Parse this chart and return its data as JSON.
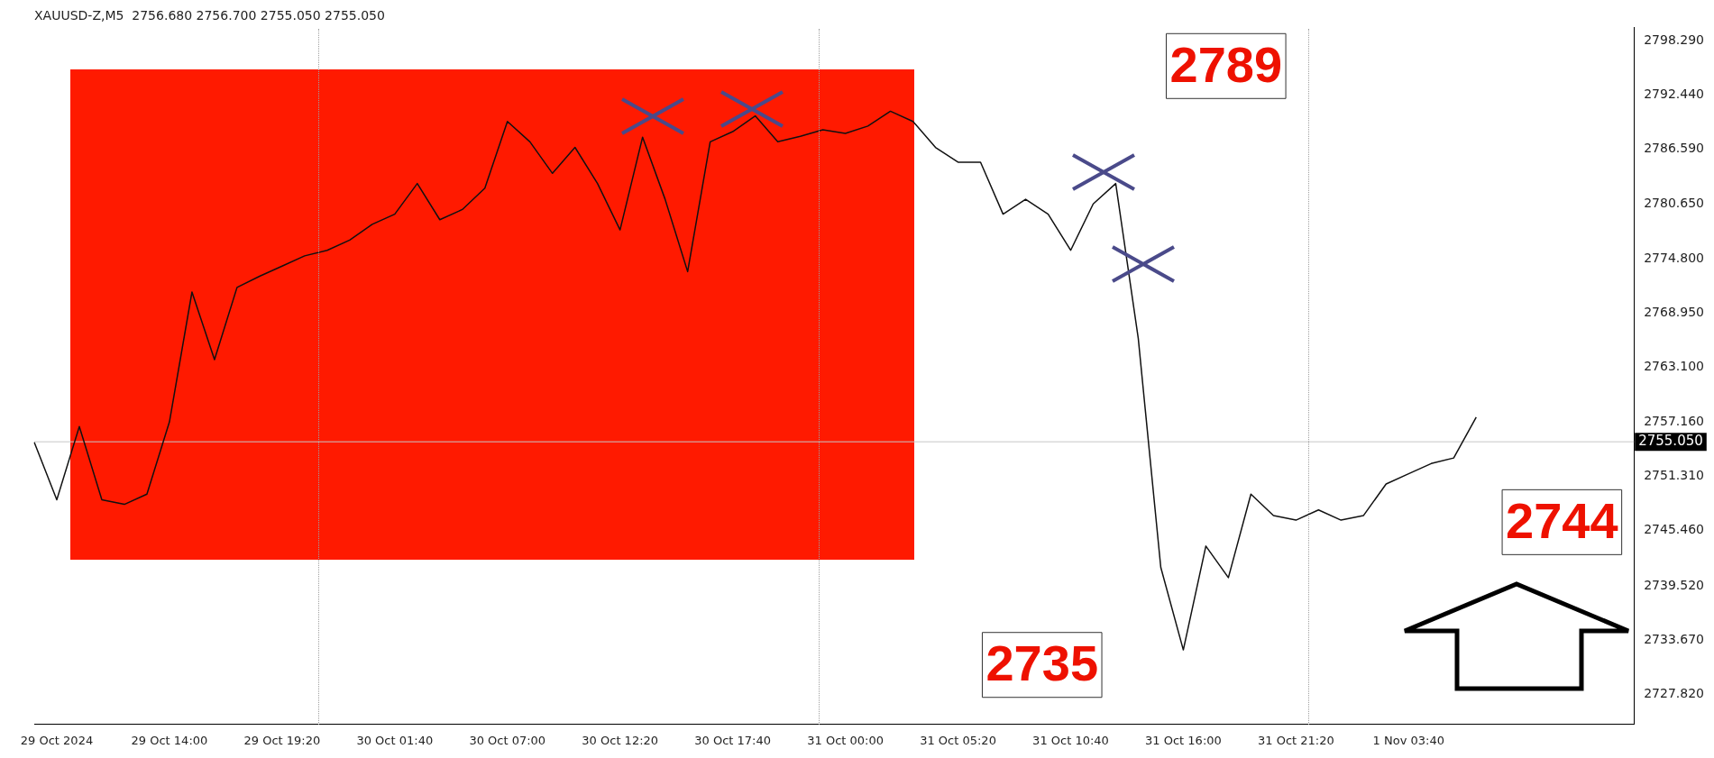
{
  "chart_data": {
    "type": "line",
    "title": "XAUUSD-Z,M5  2756.680 2756.700 2755.050 2755.050",
    "categories": [
      null,
      "29 Oct 2024",
      null,
      null,
      null,
      null,
      "29 Oct 14:00",
      null,
      null,
      null,
      null,
      "29 Oct 19:20",
      null,
      null,
      null,
      null,
      "30 Oct 01:40",
      null,
      null,
      null,
      null,
      "30 Oct 07:00",
      null,
      null,
      null,
      null,
      "30 Oct 12:20",
      null,
      null,
      null,
      null,
      "30 Oct 17:40",
      null,
      null,
      null,
      null,
      "31 Oct 00:00",
      null,
      null,
      null,
      null,
      "31 Oct 05:20",
      null,
      null,
      null,
      null,
      "31 Oct 10:40",
      null,
      null,
      null,
      null,
      "31 Oct 16:00",
      null,
      null,
      null,
      null,
      "31 Oct 21:20",
      null,
      null,
      null,
      null,
      "1 Nov 03:40",
      null,
      null,
      null,
      null,
      null,
      null,
      null,
      null,
      null,
      null
    ],
    "series": [
      {
        "color": "#111111",
        "values": [
          2755.0,
          2748.8,
          2756.7,
          2748.8,
          2748.3,
          2749.4,
          2757.2,
          2771.2,
          2763.9,
          2771.7,
          2772.9,
          2774.0,
          2775.1,
          2775.7,
          2776.8,
          2778.5,
          2779.6,
          2782.9,
          2779.0,
          2780.1,
          2782.4,
          2789.6,
          2787.4,
          2784.0,
          2786.8,
          2782.9,
          2777.9,
          2787.9,
          2781.2,
          2773.4,
          2787.4,
          2788.5,
          2790.2,
          2787.4,
          2788.0,
          2788.7,
          2788.3,
          2789.1,
          2790.7,
          2789.6,
          2786.8,
          2785.2,
          2785.2,
          2779.6,
          2781.2,
          2779.6,
          2775.7,
          2780.7,
          2782.9,
          2766.2,
          2741.5,
          2732.6,
          2743.8,
          2740.4,
          2749.4,
          2747.1,
          2746.6,
          2747.7,
          2746.6,
          2747.1,
          2750.5,
          2751.6,
          2752.7,
          2753.3,
          2757.7,
          null,
          null,
          null,
          null,
          null,
          null,
          null
        ]
      }
    ],
    "ylim": [
      2724.6,
      2799.7
    ],
    "yticks": [
      {
        "value": 2727.82,
        "label": "2727.820"
      },
      {
        "value": 2733.67,
        "label": "2733.670"
      },
      {
        "value": 2739.52,
        "label": "2739.520"
      },
      {
        "value": 2745.46,
        "label": "2745.460"
      },
      {
        "value": 2751.31,
        "label": "2751.310"
      },
      {
        "value": 2757.16,
        "label": "2757.160"
      },
      {
        "value": 2763.1,
        "label": "2763.100"
      },
      {
        "value": 2768.95,
        "label": "2768.950"
      },
      {
        "value": 2774.8,
        "label": "2774.800"
      },
      {
        "value": 2780.65,
        "label": "2780.650"
      },
      {
        "value": 2786.59,
        "label": "2786.590"
      },
      {
        "value": 2792.44,
        "label": "2792.440"
      },
      {
        "value": 2798.29,
        "label": "2798.290"
      }
    ],
    "ref_lines": [
      {
        "axis": "y",
        "value": 2755.05,
        "label": "2755.050",
        "color": "#c8c8c8"
      }
    ],
    "annotations": [
      "2789",
      "2735",
      "2744"
    ],
    "grid": false,
    "legend": false,
    "marker": "none",
    "line_style": "solid"
  }
}
